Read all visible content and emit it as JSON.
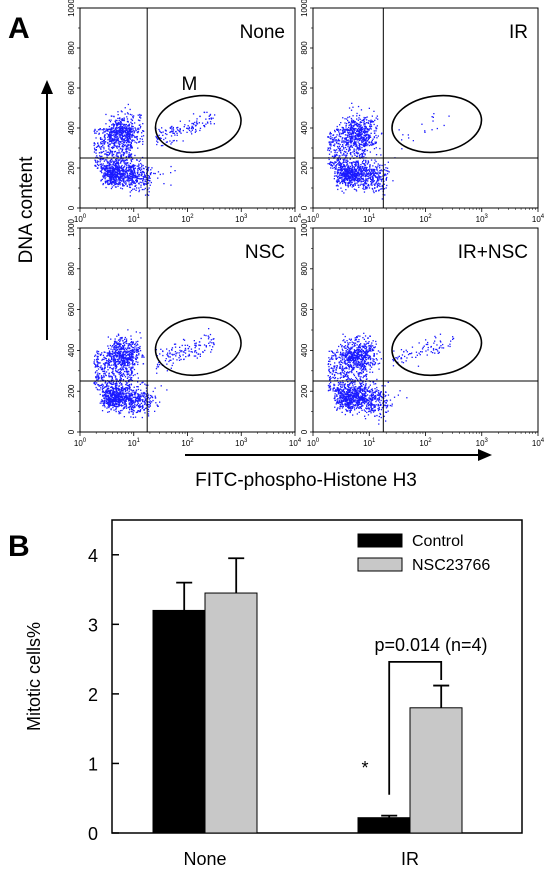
{
  "panel_a": {
    "letter": "A",
    "y_axis_label": "DNA content",
    "x_axis_label": "FITC-phospho-Histone H3",
    "gate_label": "M",
    "plots": [
      {
        "label": "None",
        "gate_events": "high"
      },
      {
        "label": "IR",
        "gate_events": "low"
      },
      {
        "label": "NSC",
        "gate_events": "high"
      },
      {
        "label": "IR+NSC",
        "gate_events": "medium"
      }
    ],
    "y_ticks": [
      0,
      200,
      400,
      600,
      800,
      1000
    ],
    "x_ticks": [
      "10",
      "10",
      "10",
      "10",
      "10"
    ],
    "x_tick_exponents": [
      "0",
      "1",
      "2",
      "3",
      "4"
    ]
  },
  "panel_b": {
    "letter": "B",
    "annotation_p": "p=0.014 (n=4)",
    "significance": "*"
  },
  "chart_data": [
    {
      "type": "scatter",
      "subplots": [
        "None",
        "IR",
        "NSC",
        "IR+NSC"
      ],
      "xlabel": "FITC-phospho-Histone H3",
      "ylabel": "DNA content",
      "xscale": "log",
      "xlim": [
        1,
        10000
      ],
      "ylim": [
        0,
        1000
      ],
      "gate": "M"
    },
    {
      "type": "bar",
      "categories": [
        "None",
        "IR"
      ],
      "series": [
        {
          "name": "Control",
          "values": [
            3.2,
            0.22
          ],
          "errors": [
            0.4,
            0.03
          ],
          "color": "#000000"
        },
        {
          "name": "NSC23766",
          "values": [
            3.45,
            1.8
          ],
          "errors": [
            0.5,
            0.32
          ],
          "color": "#c8c8c8"
        }
      ],
      "xlabel": "",
      "ylabel": "Mitotic cells%",
      "ylim": [
        0,
        4.5
      ],
      "yticks": [
        0,
        1,
        2,
        3,
        4
      ],
      "legend": "top-right",
      "annotation": "p=0.014 (n=4)",
      "significance": "*"
    }
  ]
}
